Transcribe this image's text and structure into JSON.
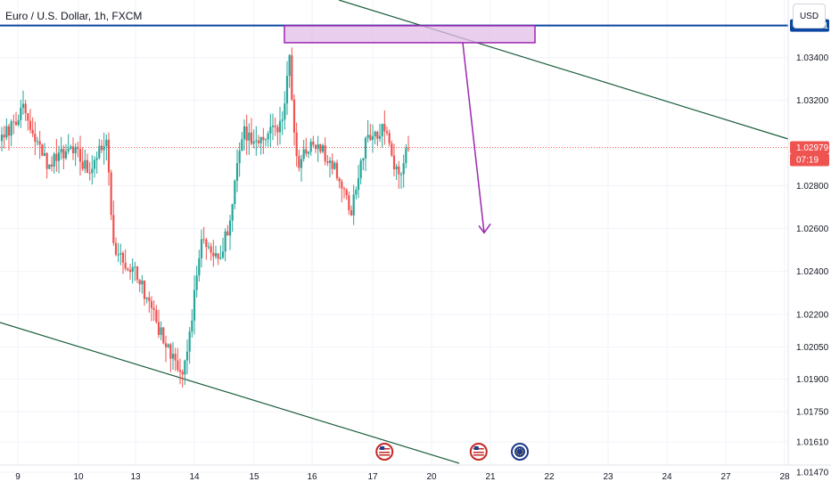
{
  "header": {
    "symbol_title": "Euro / U.S. Dollar, 1h, FXCM",
    "currency_label": "USD"
  },
  "price_axis": {
    "tick_labels": [
      "1.03400",
      "1.03200",
      "1.02800",
      "1.02600",
      "1.02400",
      "1.02200",
      "1.02050",
      "1.01900",
      "1.01750",
      "1.01610",
      "1.01470"
    ],
    "resistance_label": "1.03551",
    "current_price_label": "1.02979",
    "countdown_label": "07:19"
  },
  "time_axis": {
    "labels": [
      "9",
      "10",
      "13",
      "14",
      "15",
      "16",
      "17",
      "20",
      "21",
      "22",
      "23",
      "24",
      "27",
      "28"
    ]
  },
  "colors": {
    "up": "#26a69a",
    "down": "#ef5350",
    "channel_line": "#1b5e3b",
    "resistance_line": "#0d47a1",
    "zone_fill": "#e1bee7",
    "zone_border": "#9c27b0",
    "arrow": "#9c27b0",
    "current_price": "#ef5350"
  },
  "event_icons": [
    {
      "name": "us-flag-icon",
      "date": "17.6"
    },
    {
      "name": "us-flag-icon",
      "date": "20.8"
    },
    {
      "name": "eu-flag-icon",
      "date": "21.5"
    }
  ],
  "chart_data": {
    "type": "candlestick",
    "title": "Euro / U.S. Dollar, 1h, FXCM",
    "ylim": [
      1.0145,
      1.0365
    ],
    "y_scale": "log",
    "current_price": 1.02979,
    "resistance_level": 1.03551,
    "supply_zone": {
      "price_high": 1.0355,
      "price_low": 1.0347
    },
    "projection_target": 1.0258,
    "channel_upper": "descending line from top near 8th through 1.0356 on the 20th",
    "channel_lower": "descending line from 1.0215 on the 9th to 1.0144 on the 20th",
    "segments": [
      {
        "from": 1.03,
        "to": 1.0315,
        "n": 10
      },
      {
        "from": 1.0315,
        "to": 1.029,
        "n": 10
      },
      {
        "from": 1.029,
        "to": 1.0298,
        "n": 10
      },
      {
        "from": 1.0298,
        "to": 1.0285,
        "n": 9
      },
      {
        "from": 1.0285,
        "to": 1.0305,
        "n": 6
      },
      {
        "from": 1.0305,
        "to": 1.025,
        "n": 3
      },
      {
        "from": 1.025,
        "to": 1.024,
        "n": 10
      },
      {
        "from": 1.024,
        "to": 1.0222,
        "n": 6
      },
      {
        "from": 1.0222,
        "to": 1.02,
        "n": 8
      },
      {
        "from": 1.02,
        "to": 1.0195,
        "n": 6
      },
      {
        "from": 1.0195,
        "to": 1.0255,
        "n": 7
      },
      {
        "from": 1.0255,
        "to": 1.0245,
        "n": 8
      },
      {
        "from": 1.0245,
        "to": 1.027,
        "n": 5
      },
      {
        "from": 1.027,
        "to": 1.0305,
        "n": 4
      },
      {
        "from": 1.0305,
        "to": 1.03,
        "n": 9
      },
      {
        "from": 1.03,
        "to": 1.031,
        "n": 8
      },
      {
        "from": 1.031,
        "to": 1.034,
        "n": 3
      },
      {
        "from": 1.034,
        "to": 1.029,
        "n": 3
      },
      {
        "from": 1.029,
        "to": 1.03,
        "n": 9
      },
      {
        "from": 1.03,
        "to": 1.0285,
        "n": 9
      },
      {
        "from": 1.0285,
        "to": 1.0268,
        "n": 5
      },
      {
        "from": 1.0268,
        "to": 1.03,
        "n": 6
      },
      {
        "from": 1.03,
        "to": 1.0306,
        "n": 8
      },
      {
        "from": 1.0306,
        "to": 1.0283,
        "n": 6
      },
      {
        "from": 1.0283,
        "to": 1.0298,
        "n": 4
      }
    ]
  }
}
